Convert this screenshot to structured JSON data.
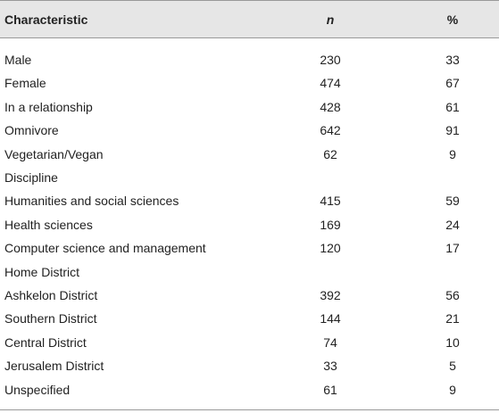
{
  "table": {
    "header": [
      "Characteristic",
      "n",
      "%"
    ],
    "rows": [
      [
        "Male",
        230,
        33
      ],
      [
        "Female",
        474,
        67
      ],
      [
        "In a relationship",
        428,
        61
      ],
      [
        "Omnivore",
        642,
        91
      ],
      [
        "Vegetarian/Vegan",
        62,
        9
      ],
      [
        "Discipline"
      ],
      [
        "Humanities and social sciences",
        415,
        59
      ],
      [
        "Health sciences",
        169,
        24
      ],
      [
        "Computer science and management",
        120,
        17
      ],
      [
        "Home District"
      ],
      [
        "Ashkelon District",
        392,
        56
      ],
      [
        "Southern District",
        144,
        21
      ],
      [
        "Central District",
        74,
        10
      ],
      [
        "Jerusalem District",
        33,
        5
      ],
      [
        "Unspecified",
        61,
        9
      ]
    ]
  }
}
